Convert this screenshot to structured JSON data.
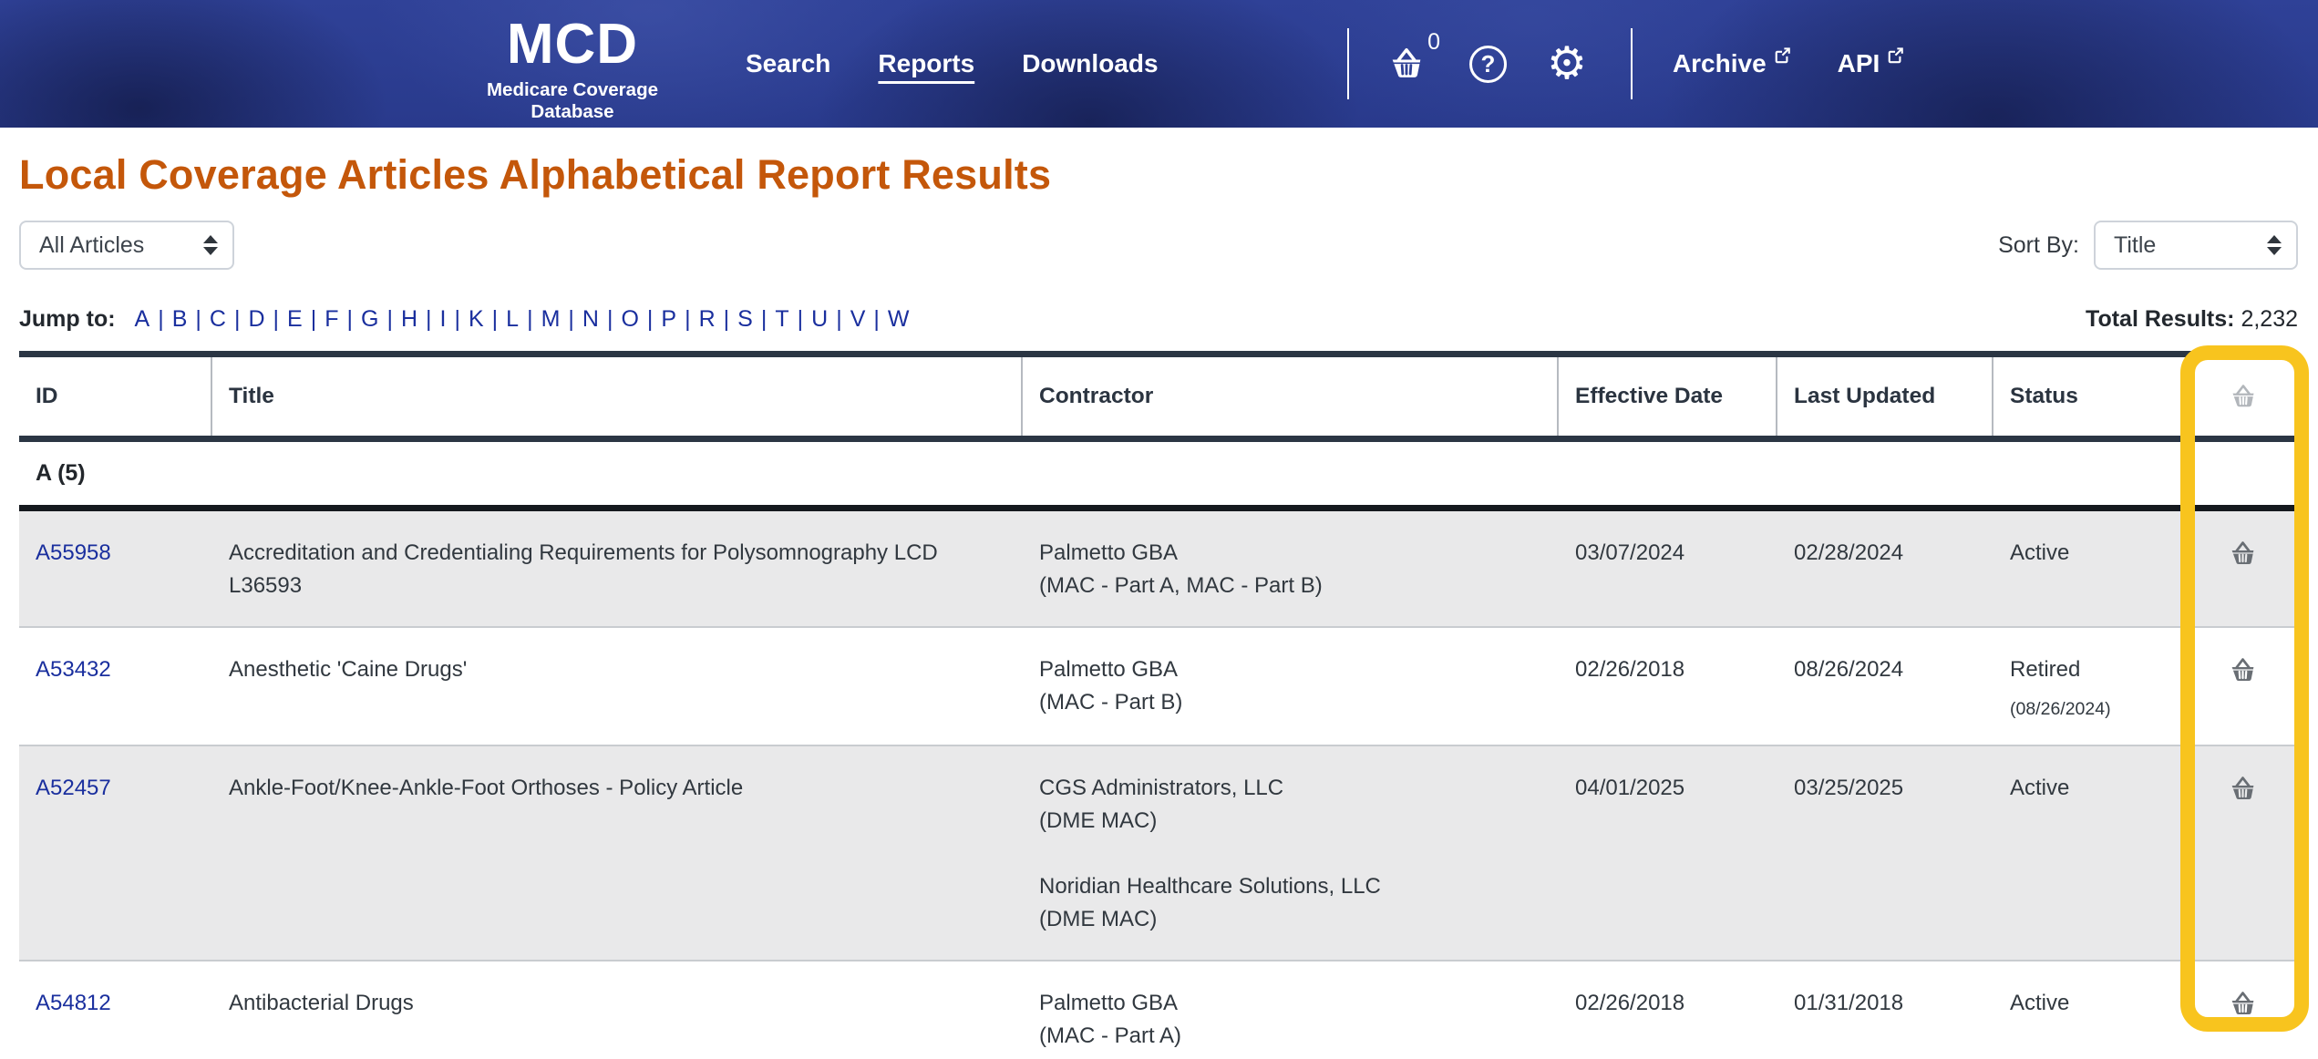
{
  "header": {
    "logo": {
      "title": "MCD",
      "subtitle": "Medicare Coverage Database"
    },
    "nav": [
      {
        "label": "Search",
        "active": false
      },
      {
        "label": "Reports",
        "active": true
      },
      {
        "label": "Downloads",
        "active": false
      }
    ],
    "basket_count": "0",
    "external_links": [
      {
        "label": "Archive"
      },
      {
        "label": "API"
      }
    ]
  },
  "icons": {
    "gear_glyph": "⚙",
    "help_glyph": "?",
    "jump_separator": "|"
  },
  "page": {
    "title": "Local Coverage Articles Alphabetical Report Results",
    "filter_value": "All Articles",
    "sort_label": "Sort By:",
    "sort_value": "Title",
    "jump_label": "Jump to:",
    "jump_letters": [
      "A",
      "B",
      "C",
      "D",
      "E",
      "F",
      "G",
      "H",
      "I",
      "K",
      "L",
      "M",
      "N",
      "O",
      "P",
      "R",
      "S",
      "T",
      "U",
      "V",
      "W"
    ],
    "total_results_label": "Total Results:",
    "total_results_value": "2,232"
  },
  "table": {
    "columns": [
      "ID",
      "Title",
      "Contractor",
      "Effective Date",
      "Last Updated",
      "Status"
    ],
    "group_header": "A (5)",
    "rows": [
      {
        "id": "A55958",
        "title": "Accreditation and Credentialing Requirements for Polysomnography LCD L36593",
        "contractors": [
          {
            "name": "Palmetto GBA",
            "type": "(MAC - Part A, MAC - Part B)"
          }
        ],
        "effective_date": "03/07/2024",
        "last_updated": "02/28/2024",
        "status": "Active",
        "status_date": "",
        "shaded": true
      },
      {
        "id": "A53432",
        "title": "Anesthetic 'Caine Drugs'",
        "contractors": [
          {
            "name": "Palmetto GBA",
            "type": "(MAC - Part B)"
          }
        ],
        "effective_date": "02/26/2018",
        "last_updated": "08/26/2024",
        "status": "Retired",
        "status_date": "(08/26/2024)",
        "shaded": false
      },
      {
        "id": "A52457",
        "title": "Ankle-Foot/Knee-Ankle-Foot Orthoses - Policy Article",
        "contractors": [
          {
            "name": "CGS Administrators, LLC",
            "type": "(DME MAC)"
          },
          {
            "name": "Noridian Healthcare Solutions, LLC",
            "type": "(DME MAC)"
          }
        ],
        "effective_date": "04/01/2025",
        "last_updated": "03/25/2025",
        "status": "Active",
        "status_date": "",
        "shaded": true
      },
      {
        "id": "A54812",
        "title": "Antibacterial Drugs",
        "contractors": [
          {
            "name": "Palmetto GBA",
            "type": "(MAC - Part A)"
          }
        ],
        "effective_date": "02/26/2018",
        "last_updated": "01/31/2018",
        "status": "Active",
        "status_date": "",
        "shaded": false
      }
    ]
  },
  "colors": {
    "header_bg": "#2e4094",
    "title_orange": "#c4570a",
    "link_blue": "#1a2f9e",
    "highlight_yellow": "#f8c41e",
    "row_shade": "#e9e9ea",
    "table_border_dark": "#2b3644"
  }
}
